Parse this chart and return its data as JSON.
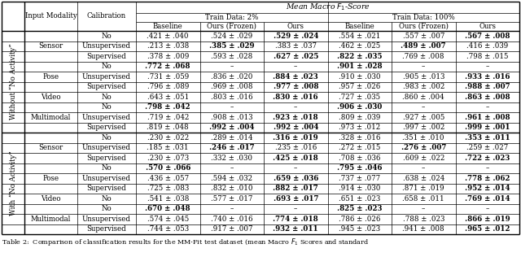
{
  "rows": [
    {
      "group": "Without \"No Activity\"",
      "modality": "Sensor",
      "cal": "No",
      "vals": [
        ".421 ± .040",
        ".524 ± .029",
        ".529 ± .024",
        ".554 ± .021",
        ".557 ± .007",
        ".567 ± .008"
      ],
      "bold": [
        2,
        5
      ]
    },
    {
      "group": "Without \"No Activity\"",
      "modality": "Sensor",
      "cal": "Unsupervised",
      "vals": [
        ".213 ± .038",
        ".385 ± .029",
        ".383 ± .037",
        ".462 ± .025",
        ".489 ± .007",
        ".416 ± .039"
      ],
      "bold": [
        1,
        4
      ]
    },
    {
      "group": "Without \"No Activity\"",
      "modality": "Sensor",
      "cal": "Supervised",
      "vals": [
        ".378 ± .009",
        ".593 ± .028",
        ".627 ± .025",
        ".822 ± .035",
        ".769 ± .008",
        ".798 ± .015"
      ],
      "bold": [
        2,
        3
      ]
    },
    {
      "group": "Without \"No Activity\"",
      "modality": "Pose",
      "cal": "No",
      "vals": [
        ".772 ± .068",
        "–",
        "–",
        ".901 ± .028",
        "–",
        "–"
      ],
      "bold": [
        0,
        3
      ]
    },
    {
      "group": "Without \"No Activity\"",
      "modality": "Pose",
      "cal": "Unsupervised",
      "vals": [
        ".731 ± .059",
        ".836 ± .020",
        ".884 ± .023",
        ".910 ± .030",
        ".905 ± .013",
        ".933 ± .016"
      ],
      "bold": [
        2,
        5
      ]
    },
    {
      "group": "Without \"No Activity\"",
      "modality": "Pose",
      "cal": "Supervised",
      "vals": [
        ".796 ± .089",
        ".969 ± .008",
        ".977 ± .008",
        ".957 ± .026",
        ".983 ± .002",
        ".988 ± .007"
      ],
      "bold": [
        2,
        5
      ]
    },
    {
      "group": "Without \"No Activity\"",
      "modality": "Video",
      "cal": "No",
      "vals": [
        ".643 ± .051",
        ".803 ± .016",
        ".830 ± .016",
        ".727 ± .035",
        ".860 ± .004",
        ".863 ± .008"
      ],
      "bold": [
        2,
        5
      ]
    },
    {
      "group": "Without \"No Activity\"",
      "modality": "Multimodal",
      "cal": "No",
      "vals": [
        ".798 ± .042",
        "–",
        "–",
        ".906 ± .030",
        "–",
        "–"
      ],
      "bold": [
        0,
        3
      ]
    },
    {
      "group": "Without \"No Activity\"",
      "modality": "Multimodal",
      "cal": "Unsupervised",
      "vals": [
        ".719 ± .042",
        ".908 ± .013",
        ".923 ± .018",
        ".809 ± .039",
        ".927 ± .005",
        ".961 ± .008"
      ],
      "bold": [
        2,
        5
      ]
    },
    {
      "group": "Without \"No Activity\"",
      "modality": "Multimodal",
      "cal": "Supervised",
      "vals": [
        ".819 ± .048",
        ".992 ± .004",
        ".992 ± .004",
        ".973 ± .012",
        ".997 ± .002",
        ".999 ± .001"
      ],
      "bold": [
        1,
        2,
        5
      ]
    },
    {
      "group": "With \"No Activity\"",
      "modality": "Sensor",
      "cal": "No",
      "vals": [
        ".230 ± .022",
        ".289 ± .014",
        ".316 ± .019",
        ".328 ± .016",
        ".351 ± .010",
        ".353 ± .011"
      ],
      "bold": [
        2,
        5
      ]
    },
    {
      "group": "With \"No Activity\"",
      "modality": "Sensor",
      "cal": "Unsupervised",
      "vals": [
        ".185 ± .031",
        ".246 ± .017",
        ".235 ± .016",
        ".272 ± .015",
        ".276 ± .007",
        ".259 ± .027"
      ],
      "bold": [
        1,
        4
      ]
    },
    {
      "group": "With \"No Activity\"",
      "modality": "Sensor",
      "cal": "Supervised",
      "vals": [
        ".230 ± .073",
        ".332 ± .030",
        ".425 ± .018",
        ".708 ± .036",
        ".609 ± .022",
        ".722 ± .023"
      ],
      "bold": [
        2,
        5
      ]
    },
    {
      "group": "With \"No Activity\"",
      "modality": "Pose",
      "cal": "No",
      "vals": [
        ".570 ± .066",
        "–",
        "–",
        ".795 ± .046",
        "–",
        "–"
      ],
      "bold": [
        0,
        3
      ]
    },
    {
      "group": "With \"No Activity\"",
      "modality": "Pose",
      "cal": "Unsupervised",
      "vals": [
        ".436 ± .057",
        ".594 ± .032",
        ".659 ± .036",
        ".737 ± .077",
        ".638 ± .024",
        ".778 ± .062"
      ],
      "bold": [
        2,
        5
      ]
    },
    {
      "group": "With \"No Activity\"",
      "modality": "Pose",
      "cal": "Supervised",
      "vals": [
        ".725 ± .083",
        ".832 ± .010",
        ".882 ± .017",
        ".914 ± .030",
        ".871 ± .019",
        ".952 ± .014"
      ],
      "bold": [
        2,
        5
      ]
    },
    {
      "group": "With \"No Activity\"",
      "modality": "Video",
      "cal": "No",
      "vals": [
        ".541 ± .038",
        ".577 ± .017",
        ".693 ± .017",
        ".651 ± .023",
        ".658 ± .011",
        ".769 ± .014"
      ],
      "bold": [
        2,
        5
      ]
    },
    {
      "group": "With \"No Activity\"",
      "modality": "Multimodal",
      "cal": "No",
      "vals": [
        ".670 ± .048",
        "–",
        "–",
        ".825 ± .023",
        "–",
        "–"
      ],
      "bold": [
        0,
        3
      ]
    },
    {
      "group": "With \"No Activity\"",
      "modality": "Multimodal",
      "cal": "Unsupervised",
      "vals": [
        ".574 ± .045",
        ".740 ± .016",
        ".774 ± .018",
        ".786 ± .026",
        ".788 ± .023",
        ".866 ± .019"
      ],
      "bold": [
        2,
        5
      ]
    },
    {
      "group": "With \"No Activity\"",
      "modality": "Multimodal",
      "cal": "Supervised",
      "vals": [
        ".744 ± .053",
        ".917 ± .007",
        ".932 ± .011",
        ".945 ± .023",
        ".941 ± .008",
        ".965 ± .012"
      ],
      "bold": [
        2,
        5
      ]
    }
  ],
  "modality_spans": [
    [
      0,
      2,
      "Sensor"
    ],
    [
      3,
      5,
      "Pose"
    ],
    [
      6,
      6,
      "Video"
    ],
    [
      7,
      9,
      "Multimodal"
    ],
    [
      10,
      12,
      "Sensor"
    ],
    [
      13,
      15,
      "Pose"
    ],
    [
      16,
      16,
      "Video"
    ],
    [
      17,
      19,
      "Multimodal"
    ]
  ],
  "group_spans": [
    [
      0,
      9,
      "Without “No Activity”"
    ],
    [
      10,
      19,
      "With “No Activity”"
    ]
  ],
  "col_headers": [
    "Baseline",
    "Ours (Frozen)",
    "Ours",
    "Baseline",
    "Ours (Frozen)",
    "Ours"
  ],
  "train_headers": [
    "Train Data: 2%",
    "Train Data: 100%"
  ],
  "main_header": "Mean Macro $F_1$-Score",
  "caption": "Table 2:  Comparison of classification results for the MM-Fit test dataset (mean Macro $F_1$ Scores and standard",
  "font_size": 6.2,
  "caption_font_size": 5.8,
  "lw_thin": 0.5,
  "lw_thick": 1.0
}
